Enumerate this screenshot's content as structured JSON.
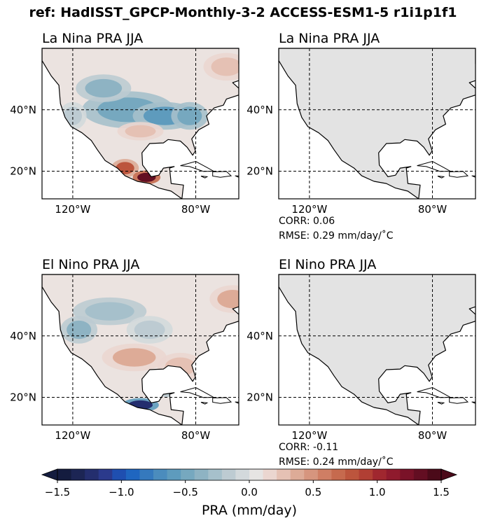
{
  "figure": {
    "title": "ref: HadISST_GPCP-Monthly-3-2 ACCESS-ESM1-5 r1i1p1f1"
  },
  "panels": [
    {
      "title": "La Nina PRA JJA",
      "kind": "anomaly",
      "stats": null,
      "blobs": [
        {
          "lon": -102,
          "lat": 40,
          "rx": 10,
          "ry": 4,
          "v": -0.5
        },
        {
          "lon": -90,
          "lat": 38,
          "rx": 7,
          "ry": 3,
          "v": -0.6
        },
        {
          "lon": -82,
          "lat": 38,
          "rx": 4,
          "ry": 3,
          "v": -0.5
        },
        {
          "lon": -110,
          "lat": 47,
          "rx": 6,
          "ry": 3,
          "v": -0.35
        },
        {
          "lon": -98,
          "lat": 33,
          "rx": 5,
          "ry": 2,
          "v": 0.3
        },
        {
          "lon": -103,
          "lat": 21,
          "rx": 3,
          "ry": 2,
          "v": 0.8
        },
        {
          "lon": -96,
          "lat": 18,
          "rx": 3,
          "ry": 1.5,
          "v": 1.3
        },
        {
          "lon": -70,
          "lat": 54,
          "rx": 5,
          "ry": 3,
          "v": 0.3
        },
        {
          "lon": -120,
          "lat": 38,
          "rx": 3,
          "ry": 3,
          "v": -0.2
        }
      ]
    },
    {
      "title": "La Nina PRA JJA",
      "kind": "masked",
      "stats": {
        "corr": "CORR: 0.06",
        "rmse": "RMSE: 0.29 mm/day/$^\\circ$C"
      },
      "blobs": []
    },
    {
      "title": "El Nino PRA JJA",
      "kind": "anomaly",
      "stats": null,
      "blobs": [
        {
          "lon": -100,
          "lat": 33,
          "rx": 7,
          "ry": 3,
          "v": 0.35
        },
        {
          "lon": -85,
          "lat": 30,
          "rx": 5,
          "ry": 3,
          "v": 0.3
        },
        {
          "lon": -108,
          "lat": 48,
          "rx": 8,
          "ry": 3,
          "v": -0.3
        },
        {
          "lon": -118,
          "lat": 42,
          "rx": 4,
          "ry": 3,
          "v": -0.35
        },
        {
          "lon": -88,
          "lat": 23,
          "rx": 4,
          "ry": 2,
          "v": -0.4
        },
        {
          "lon": -98,
          "lat": 17.5,
          "rx": 4,
          "ry": 1.5,
          "v": -1.2
        },
        {
          "lon": -68,
          "lat": 52,
          "rx": 5,
          "ry": 3,
          "v": 0.4
        },
        {
          "lon": -95,
          "lat": 42,
          "rx": 5,
          "ry": 3,
          "v": -0.2
        }
      ]
    },
    {
      "title": "El Nino PRA JJA",
      "kind": "masked",
      "stats": {
        "corr": "CORR: -0.11",
        "rmse": "RMSE: 0.24 mm/day/$^\\circ$C"
      },
      "blobs": []
    }
  ],
  "axes": {
    "lon_range": [
      -130,
      -66
    ],
    "lat_range": [
      11,
      60
    ],
    "xticks": [
      {
        "lon": -120,
        "label": "120°W"
      },
      {
        "lon": -80,
        "label": "80°W"
      }
    ],
    "yticks": [
      {
        "lat": 40,
        "label": "40°N"
      },
      {
        "lat": 20,
        "label": "20°N"
      }
    ]
  },
  "colorbar": {
    "label": "PRA (mm/day)",
    "vmin": -1.5,
    "vmax": 1.5,
    "extend": "both",
    "ticks": [
      "−1.5",
      "−1.0",
      "−0.5",
      "0.0",
      "0.5",
      "1.0",
      "1.5"
    ],
    "tick_values": [
      -1.5,
      -1.0,
      -0.5,
      0.0,
      0.5,
      1.0,
      1.5
    ],
    "colors": [
      "#141c3f",
      "#1c2554",
      "#242e6e",
      "#2b3a8c",
      "#1f4fb0",
      "#1f66c0",
      "#3579bd",
      "#4b8cbd",
      "#5e9bbd",
      "#76a8bf",
      "#8eb3c3",
      "#a6c0cb",
      "#bdcbd2",
      "#d3d9dc",
      "#e6e4e3",
      "#ebd6d0",
      "#e5c1b4",
      "#ddab97",
      "#d6957e",
      "#cf7e64",
      "#c66a4e",
      "#bc553d",
      "#b13f34",
      "#a0272f",
      "#8f1a2d",
      "#7a1228",
      "#630e22",
      "#4b0a19"
    ]
  },
  "chart_data": [
    {
      "type": "heatmap",
      "title": "La Nina PRA JJA",
      "xlabel": "",
      "ylabel": "",
      "xlim": [
        -130,
        -66
      ],
      "ylim": [
        11,
        60
      ],
      "xticks": [
        "120°W",
        "80°W"
      ],
      "yticks": [
        "40°N",
        "20°N"
      ],
      "colorbar_label": "PRA (mm/day)",
      "vrange": [
        -1.5,
        1.5
      ]
    },
    {
      "type": "heatmap",
      "title": "La Nina PRA JJA",
      "xlim": [
        -130,
        -66
      ],
      "ylim": [
        11,
        60
      ],
      "annotations": [
        "CORR: 0.06",
        "RMSE: 0.29 mm/day/$^\\circ$C"
      ]
    },
    {
      "type": "heatmap",
      "title": "El Nino PRA JJA",
      "xlim": [
        -130,
        -66
      ],
      "ylim": [
        11,
        60
      ],
      "xticks": [
        "120°W",
        "80°W"
      ],
      "yticks": [
        "40°N",
        "20°N"
      ]
    },
    {
      "type": "heatmap",
      "title": "El Nino PRA JJA",
      "xlim": [
        -130,
        -66
      ],
      "ylim": [
        11,
        60
      ],
      "annotations": [
        "CORR: -0.11",
        "RMSE: 0.24 mm/day/$^\\circ$C"
      ]
    }
  ]
}
